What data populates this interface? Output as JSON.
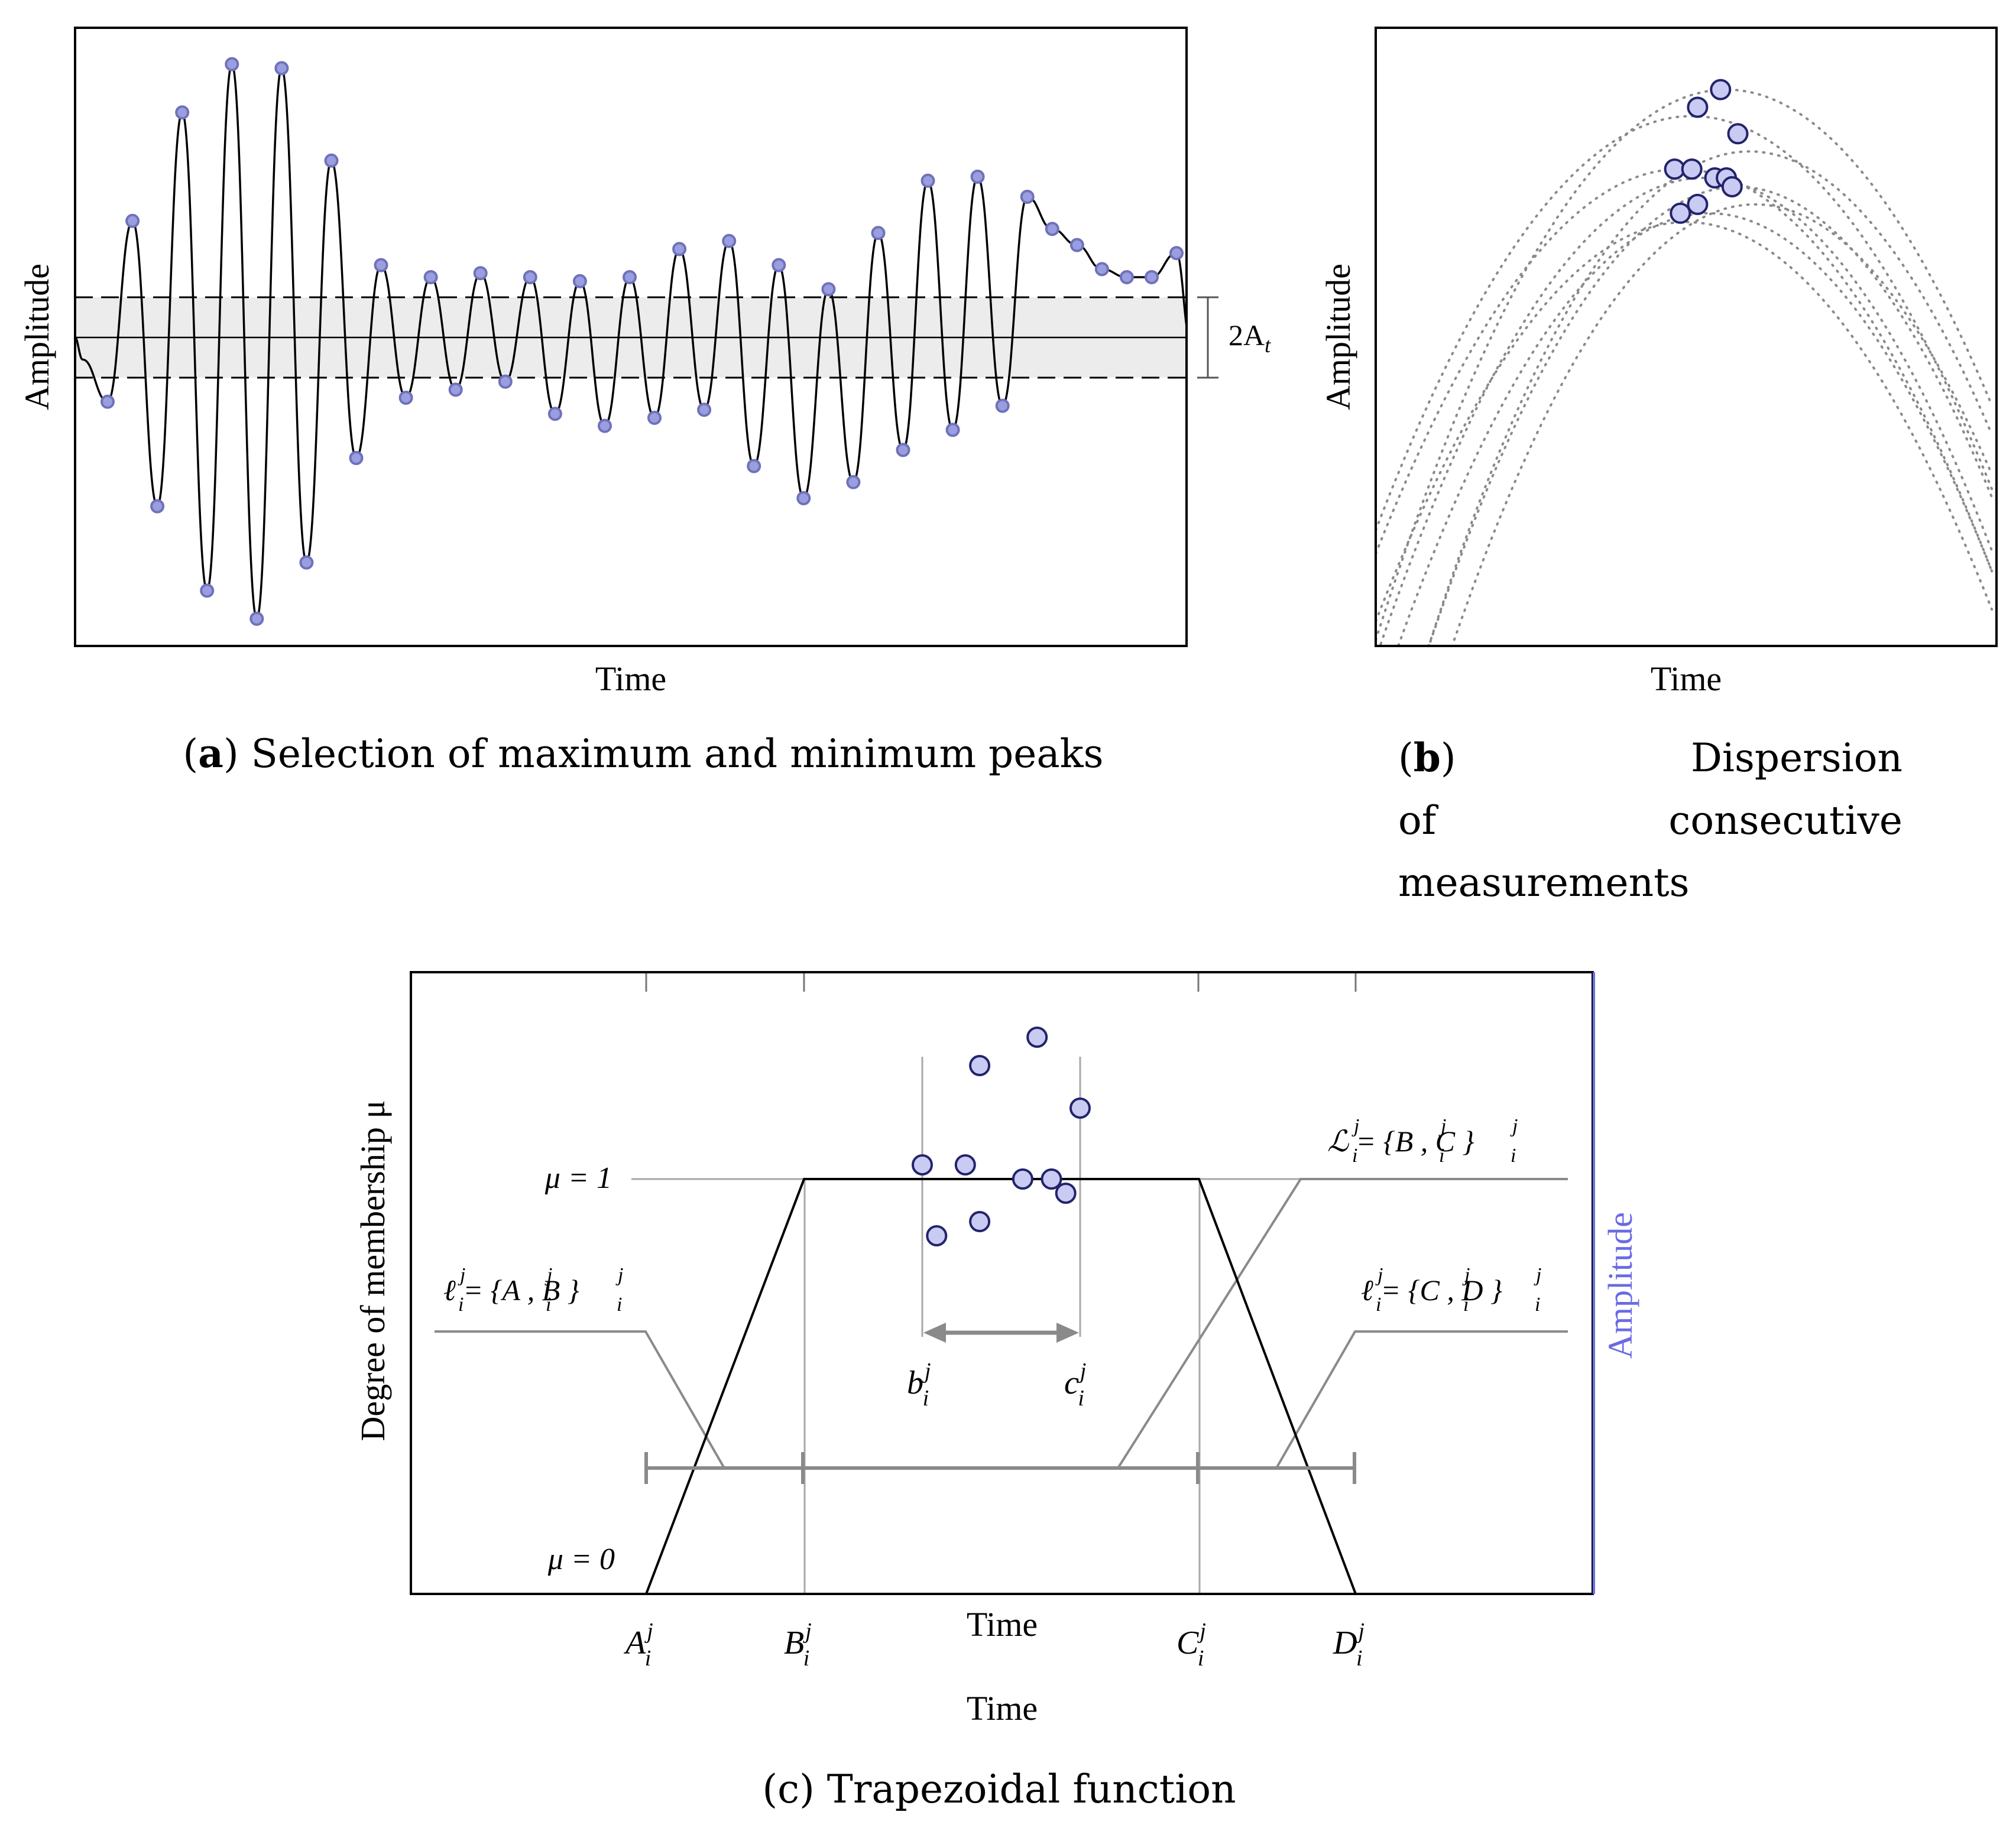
{
  "panel_a": {
    "x_label": "Time",
    "y_label": "Amplitude",
    "threshold_label": "2A",
    "threshold_sub": "t",
    "caption_letter": "a",
    "caption_text": " Selection of maximum and minimum peaks"
  },
  "panel_b": {
    "x_label": "Time",
    "y_label": "Amplitude",
    "caption_letter": "b",
    "caption_line1": "Dispersion",
    "caption_line2_left": "of",
    "caption_line2_right": "consecutive",
    "caption_line3": "measurements"
  },
  "panel_c": {
    "y_label": "Degree of membership μ",
    "right_label": "Amplitude",
    "x_label_inner": "Time",
    "x_label_outer": "Time",
    "mu1_label": "μ = 1",
    "mu0_label": "μ = 0",
    "ticks": [
      {
        "base": "A",
        "sub": "i",
        "sup": "j"
      },
      {
        "base": "B",
        "sub": "i",
        "sup": "j"
      },
      {
        "base": "C",
        "sub": "i",
        "sup": "j"
      },
      {
        "base": "D",
        "sub": "i",
        "sup": "j"
      }
    ],
    "interval_b": {
      "base": "b",
      "sub": "i",
      "sup": "j"
    },
    "interval_c": {
      "base": "c",
      "sub": "i",
      "sup": "j"
    },
    "set_left": "ℓ = {A , B }",
    "set_right": "ℓ = {C , D }",
    "set_top": "ℒ = {B , C }",
    "caption_letter": "c",
    "caption_text": " Trapezoidal function"
  },
  "colors": {
    "marker_fill": "#c9cbf3",
    "marker_stroke": "#23236b",
    "peak_fill": "#9a9ee0",
    "peak_stroke": "#6e72b8",
    "grey_line": "#8a8a8a",
    "light_grey": "#a8a8a8",
    "band": "#ececec",
    "accent_blue": "#6a6ae6"
  },
  "chart_data": [
    {
      "type": "line",
      "title": "Selection of maximum and minimum peaks",
      "xlabel": "Time",
      "ylabel": "Amplitude",
      "threshold": {
        "symbol": "A_t",
        "band": [
          -1,
          1
        ]
      },
      "peaks_max": [
        -0.55,
        2.9,
        5.6,
        6.8,
        6.7,
        4.4,
        1.8,
        1.5,
        1.6,
        1.5,
        1.4,
        1.5,
        2.2,
        2.4,
        1.8,
        1.2,
        2.6,
        3.9,
        4.0,
        3.5,
        2.7,
        2.3,
        1.7,
        1.5,
        1.5,
        2.1
      ],
      "peaks_min": [
        -1.6,
        -4.2,
        -6.3,
        -7.0,
        -5.6,
        -3.0,
        -1.5,
        -1.3,
        -1.1,
        -1.9,
        -2.2,
        -2.0,
        -1.8,
        -3.2,
        -4.0,
        -3.6,
        -2.8,
        -2.3,
        -1.7
      ]
    },
    {
      "type": "scatter",
      "title": "Dispersion of consecutive measurements",
      "xlabel": "Time",
      "ylabel": "Amplitude",
      "points": [
        [
          5.0,
          7.1
        ],
        [
          5.2,
          7.3
        ],
        [
          5.35,
          6.8
        ],
        [
          4.8,
          6.4
        ],
        [
          4.95,
          6.4
        ],
        [
          5.15,
          6.3
        ],
        [
          5.25,
          6.3
        ],
        [
          5.3,
          6.2
        ],
        [
          4.85,
          5.9
        ],
        [
          5.0,
          6.0
        ]
      ],
      "curve_peaks": [
        [
          4.95,
          7.0
        ],
        [
          5.25,
          7.3
        ],
        [
          5.45,
          6.6
        ],
        [
          4.85,
          6.4
        ],
        [
          5.05,
          6.3
        ],
        [
          5.35,
          6.2
        ],
        [
          4.9,
          5.8
        ],
        [
          5.1,
          5.9
        ],
        [
          5.5,
          6.0
        ]
      ]
    }
  ]
}
